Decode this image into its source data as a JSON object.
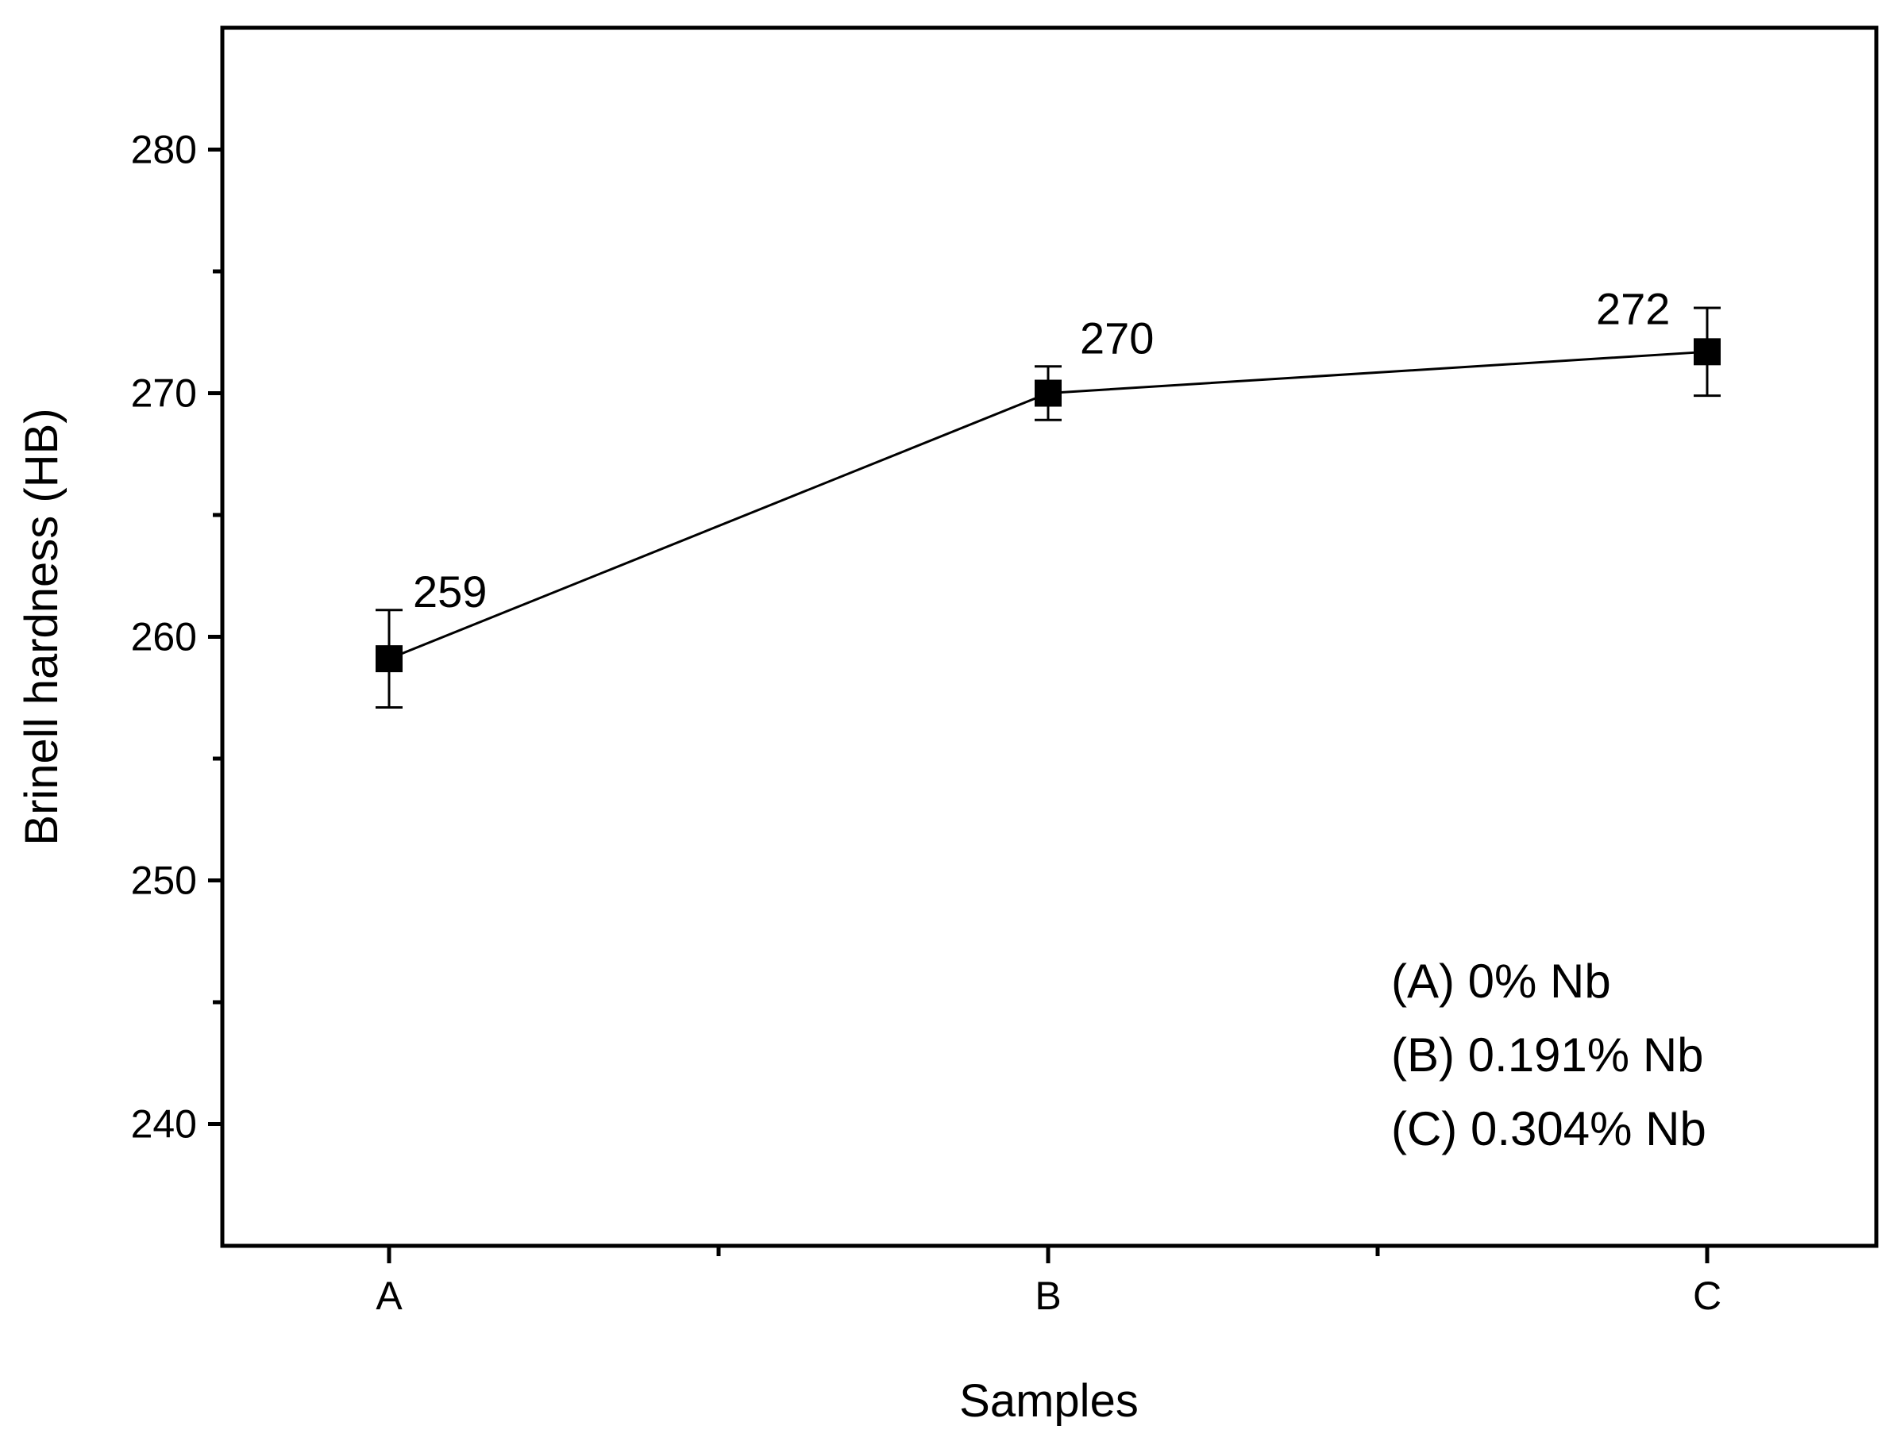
{
  "chart_data": {
    "type": "line",
    "title": "",
    "xlabel": "Samples",
    "ylabel": "Brinell hardness (HB)",
    "categories": [
      "A",
      "B",
      "C"
    ],
    "ylim": [
      235,
      285
    ],
    "y_ticks": [
      240,
      250,
      260,
      270,
      280
    ],
    "y_tick_labels": [
      "240",
      "250",
      "260",
      "270",
      "280"
    ],
    "grid": false,
    "series": [
      {
        "values": [
          259.1,
          270.0,
          271.7
        ],
        "errors": [
          2.0,
          1.1,
          1.8
        ],
        "data_labels": [
          "259",
          "270",
          "272"
        ],
        "marker": "square",
        "color": "#000000"
      }
    ],
    "annotations": [
      "(A) 0% Nb",
      "(B) 0.191% Nb",
      "(C) 0.304% Nb"
    ]
  }
}
